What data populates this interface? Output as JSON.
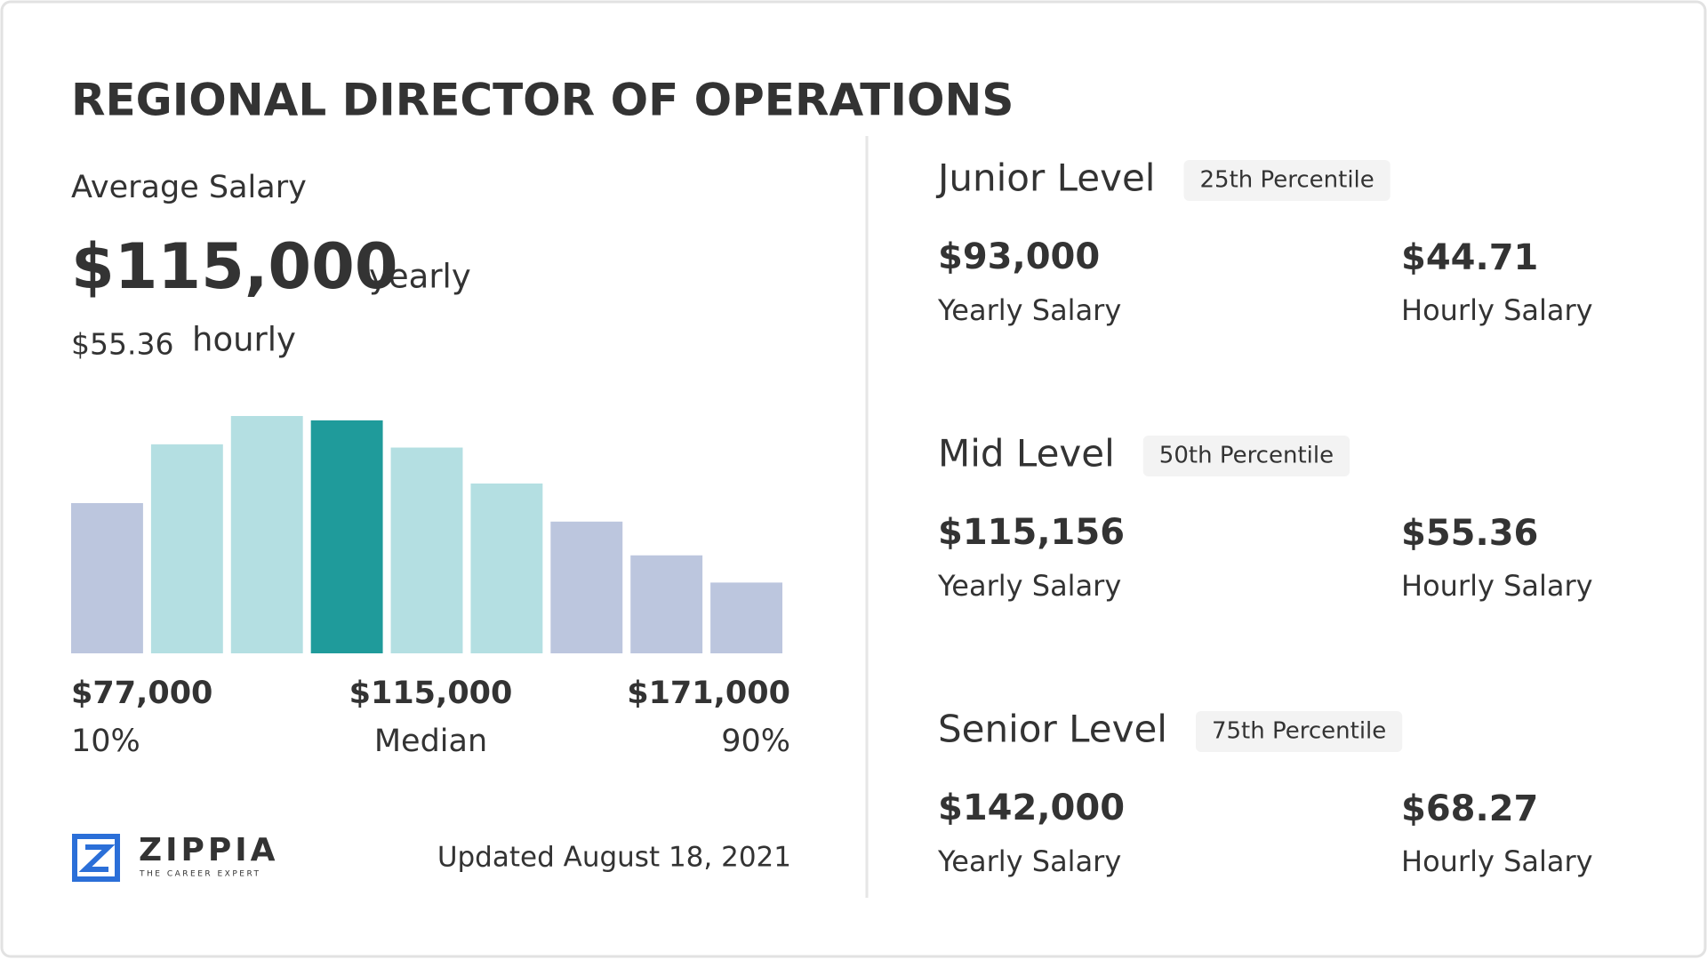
{
  "header": {
    "title": "REGIONAL DIRECTOR OF OPERATIONS"
  },
  "average": {
    "label": "Average Salary",
    "yearly": "$115,000",
    "yearly_unit": "yearly",
    "hourly": "$55.36",
    "hourly_unit": "hourly"
  },
  "chart_data": {
    "type": "bar",
    "values": [
      138,
      192,
      218,
      214,
      189,
      156,
      121,
      90,
      65
    ],
    "colors": [
      "#bcc6de",
      "#b4dfe2",
      "#b4dfe2",
      "#1f9b9b",
      "#b4dfe2",
      "#b4dfe2",
      "#bcc6de",
      "#bcc6de",
      "#bcc6de"
    ],
    "range_labels": [
      {
        "amount": "$77,000",
        "label": "10%"
      },
      {
        "amount": "$115,000",
        "label": "Median"
      },
      {
        "amount": "$171,000",
        "label": "90%"
      }
    ]
  },
  "levels": [
    {
      "name": "Junior Level",
      "percentile": "25th Percentile",
      "yearly": "$93,000",
      "yearly_label": "Yearly Salary",
      "hourly": "$44.71",
      "hourly_label": "Hourly Salary"
    },
    {
      "name": "Mid Level",
      "percentile": "50th Percentile",
      "yearly": "$115,156",
      "yearly_label": "Yearly Salary",
      "hourly": "$55.36",
      "hourly_label": "Hourly Salary"
    },
    {
      "name": "Senior Level",
      "percentile": "75th Percentile",
      "yearly": "$142,000",
      "yearly_label": "Yearly Salary",
      "hourly": "$68.27",
      "hourly_label": "Hourly Salary"
    }
  ],
  "footer": {
    "brand": "ZIPPIA",
    "tagline": "THE CAREER EXPERT",
    "updated": "Updated August 18, 2021"
  }
}
